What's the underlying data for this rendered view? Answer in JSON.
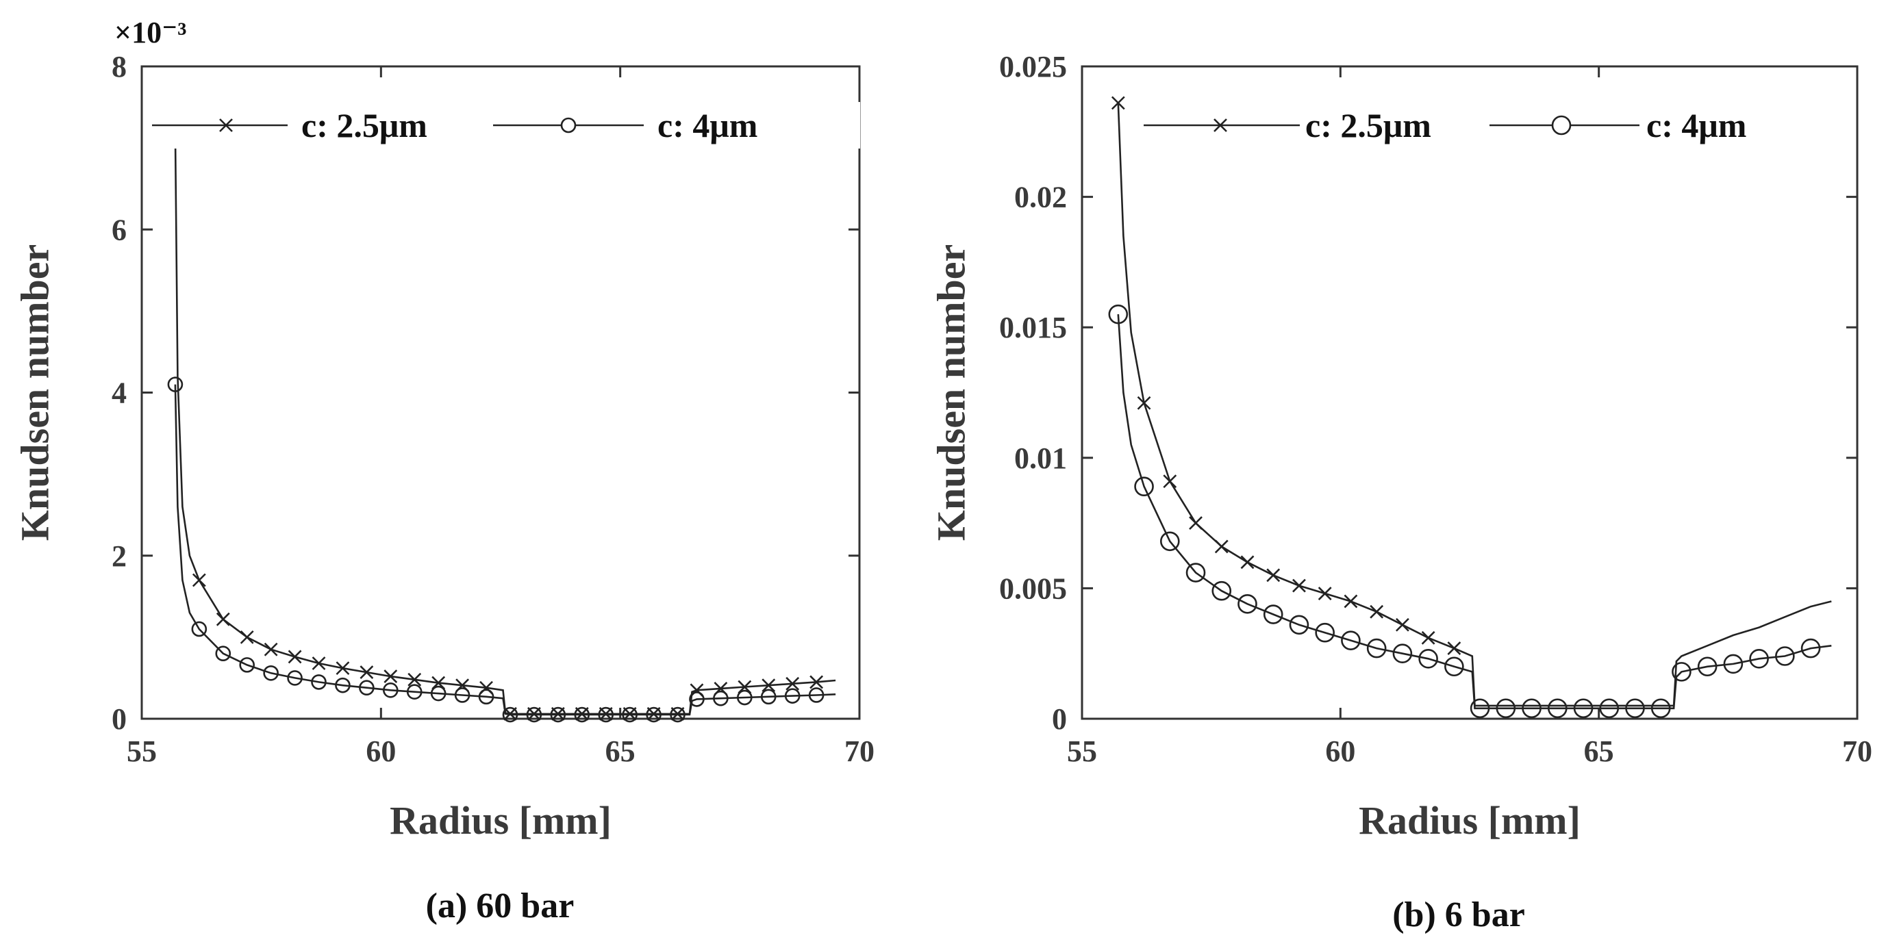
{
  "chart_data": [
    {
      "type": "line",
      "title": "",
      "caption": "(a) 60 bar",
      "xlabel": "Radius [mm]",
      "ylabel": "Knudsen number",
      "xlim": [
        55,
        70
      ],
      "ylim": [
        0,
        8
      ],
      "x_ticks": [
        55,
        60,
        65,
        70
      ],
      "y_ticks": [
        0,
        2,
        4,
        6,
        8
      ],
      "y_tick_labels": [
        "0",
        "2",
        "4",
        "6",
        "8"
      ],
      "y_exponent_label": "×10⁻³",
      "y_unit_note": "values in units of 10^-3",
      "grid": false,
      "legend_position": "top",
      "series": [
        {
          "name": "c: 2.5μm",
          "marker": "x",
          "x": [
            55.7,
            55.75,
            55.85,
            56.0,
            56.2,
            56.7,
            57.2,
            57.7,
            58.2,
            58.7,
            59.2,
            59.7,
            60.2,
            60.7,
            61.2,
            61.7,
            62.2,
            62.55,
            62.6,
            62.7,
            63.2,
            63.7,
            64.2,
            64.7,
            65.2,
            65.7,
            66.2,
            66.45,
            66.5,
            66.6,
            67.1,
            67.6,
            68.1,
            68.6,
            69.1,
            69.5
          ],
          "y": [
            7.2,
            4.2,
            2.6,
            2.0,
            1.7,
            1.22,
            1.0,
            0.85,
            0.76,
            0.68,
            0.62,
            0.57,
            0.52,
            0.48,
            0.44,
            0.41,
            0.38,
            0.35,
            0.07,
            0.06,
            0.06,
            0.06,
            0.06,
            0.06,
            0.06,
            0.06,
            0.06,
            0.06,
            0.33,
            0.35,
            0.37,
            0.39,
            0.41,
            0.43,
            0.45,
            0.47
          ],
          "marker_indices": [
            0,
            4,
            5,
            6,
            7,
            8,
            9,
            10,
            11,
            12,
            13,
            14,
            15,
            16,
            19,
            20,
            21,
            22,
            23,
            24,
            25,
            26,
            29,
            30,
            31,
            32,
            33,
            34
          ]
        },
        {
          "name": "c: 4μm",
          "marker": "o",
          "x": [
            55.7,
            55.75,
            55.85,
            56.0,
            56.2,
            56.7,
            57.2,
            57.7,
            58.2,
            58.7,
            59.2,
            59.7,
            60.2,
            60.7,
            61.2,
            61.7,
            62.2,
            62.55,
            62.6,
            62.7,
            63.2,
            63.7,
            64.2,
            64.7,
            65.2,
            65.7,
            66.2,
            66.45,
            66.5,
            66.6,
            67.1,
            67.6,
            68.1,
            68.6,
            69.1,
            69.5
          ],
          "y": [
            4.1,
            2.6,
            1.7,
            1.3,
            1.1,
            0.8,
            0.66,
            0.56,
            0.5,
            0.45,
            0.41,
            0.38,
            0.35,
            0.33,
            0.31,
            0.29,
            0.27,
            0.25,
            0.06,
            0.05,
            0.05,
            0.05,
            0.05,
            0.05,
            0.05,
            0.05,
            0.05,
            0.05,
            0.22,
            0.24,
            0.25,
            0.26,
            0.27,
            0.28,
            0.29,
            0.3
          ],
          "marker_indices": [
            0,
            4,
            5,
            6,
            7,
            8,
            9,
            10,
            11,
            12,
            13,
            14,
            15,
            16,
            19,
            20,
            21,
            22,
            23,
            24,
            25,
            26,
            29,
            30,
            31,
            32,
            33,
            34
          ]
        }
      ]
    },
    {
      "type": "line",
      "title": "",
      "caption": "(b) 6 bar",
      "xlabel": "Radius [mm]",
      "ylabel": "Knudsen number",
      "xlim": [
        55,
        70
      ],
      "ylim": [
        0,
        0.025
      ],
      "x_ticks": [
        55,
        60,
        65,
        70
      ],
      "y_ticks": [
        0,
        0.005,
        0.01,
        0.015,
        0.02,
        0.025
      ],
      "y_tick_labels": [
        "0",
        "0.005",
        "0.01",
        "0.015",
        "0.02",
        "0.025"
      ],
      "grid": false,
      "legend_position": "top",
      "series": [
        {
          "name": "c: 2.5μm",
          "marker": "x",
          "x": [
            55.7,
            55.8,
            55.95,
            56.2,
            56.7,
            57.2,
            57.7,
            58.2,
            58.7,
            59.2,
            59.7,
            60.2,
            60.7,
            61.2,
            61.7,
            62.2,
            62.55,
            62.6,
            62.7,
            63.2,
            63.7,
            64.2,
            64.7,
            65.2,
            65.7,
            66.2,
            66.45,
            66.5,
            66.6,
            67.1,
            67.6,
            68.1,
            68.6,
            69.1,
            69.5
          ],
          "y": [
            0.0236,
            0.0185,
            0.0148,
            0.0121,
            0.0091,
            0.0075,
            0.0066,
            0.006,
            0.0055,
            0.0051,
            0.0048,
            0.0045,
            0.0041,
            0.0036,
            0.0031,
            0.0027,
            0.0024,
            0.0005,
            0.0005,
            0.0005,
            0.0005,
            0.0005,
            0.0005,
            0.0005,
            0.0005,
            0.0005,
            0.0005,
            0.0022,
            0.0024,
            0.0028,
            0.0032,
            0.0035,
            0.0039,
            0.0043,
            0.0045
          ],
          "marker_indices": [
            0,
            3,
            4,
            5,
            6,
            7,
            8,
            9,
            10,
            11,
            12,
            13,
            14,
            15
          ]
        },
        {
          "name": "c: 4μm",
          "marker": "o",
          "x": [
            55.7,
            55.8,
            55.95,
            56.2,
            56.7,
            57.2,
            57.7,
            58.2,
            58.7,
            59.2,
            59.7,
            60.2,
            60.7,
            61.2,
            61.7,
            62.2,
            62.55,
            62.6,
            62.7,
            63.2,
            63.7,
            64.2,
            64.7,
            65.2,
            65.7,
            66.2,
            66.45,
            66.5,
            66.6,
            67.1,
            67.6,
            68.1,
            68.6,
            69.1,
            69.5
          ],
          "y": [
            0.0155,
            0.0125,
            0.0105,
            0.0089,
            0.0068,
            0.0056,
            0.0049,
            0.0044,
            0.004,
            0.0036,
            0.0033,
            0.003,
            0.0027,
            0.0025,
            0.0023,
            0.002,
            0.0018,
            0.0004,
            0.0004,
            0.0004,
            0.0004,
            0.0004,
            0.0004,
            0.0004,
            0.0004,
            0.0004,
            0.0004,
            0.0016,
            0.0018,
            0.002,
            0.0021,
            0.0023,
            0.0024,
            0.0027,
            0.0028
          ],
          "marker_indices": [
            0,
            3,
            4,
            5,
            6,
            7,
            8,
            9,
            10,
            11,
            12,
            13,
            14,
            15,
            18,
            19,
            20,
            21,
            22,
            23,
            24,
            25,
            28,
            29,
            30,
            31,
            32,
            33
          ]
        }
      ]
    }
  ]
}
